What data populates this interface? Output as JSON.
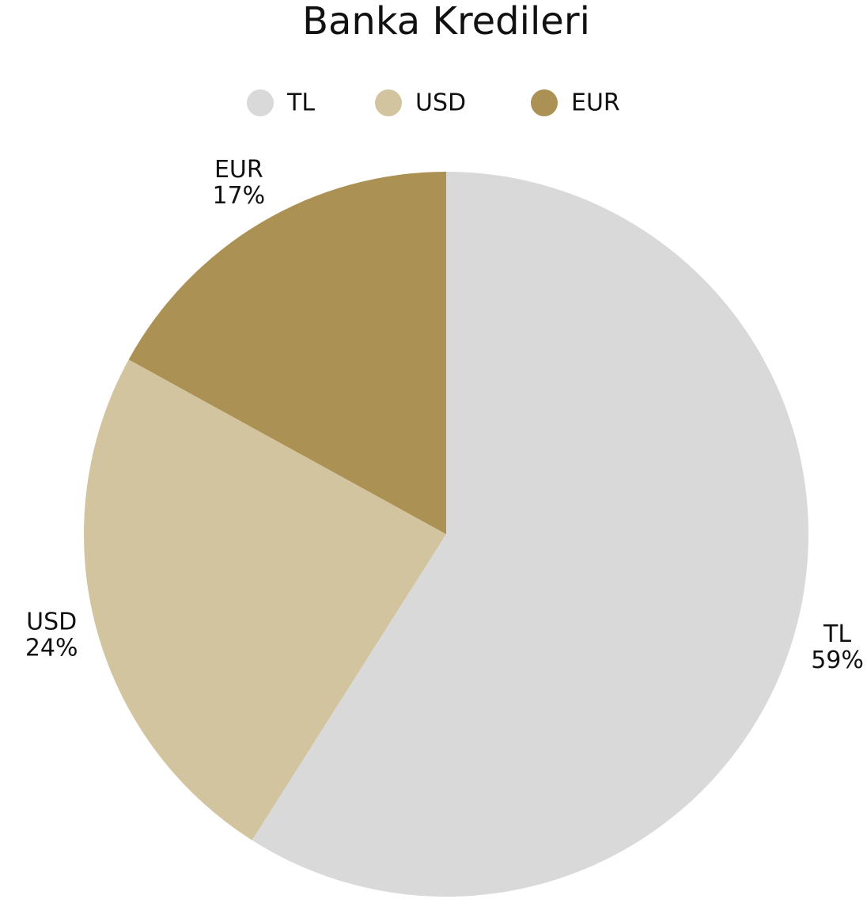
{
  "chart_data": {
    "type": "pie",
    "title": "Banka Kredileri",
    "categories": [
      "TL",
      "USD",
      "EUR"
    ],
    "values": [
      59,
      24,
      17
    ],
    "value_labels": [
      "59%",
      "24%",
      "17%"
    ],
    "colors": [
      "#d9d9d9",
      "#d3c4a0",
      "#ab9154"
    ],
    "legend": "top"
  }
}
